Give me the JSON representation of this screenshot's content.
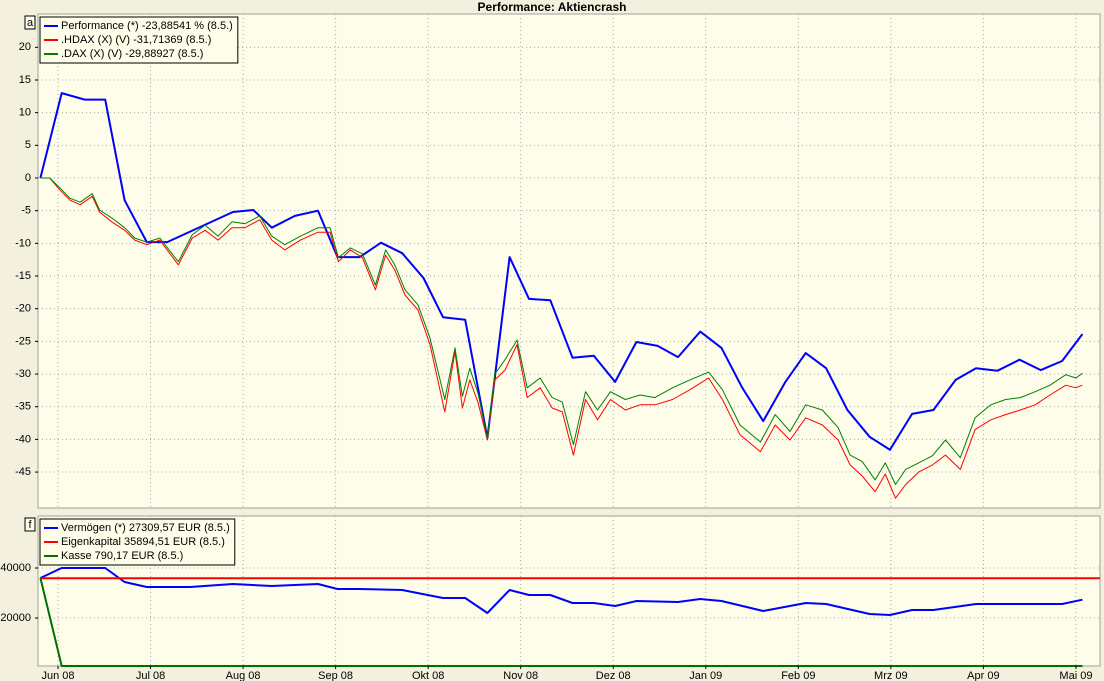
{
  "chart_data": [
    {
      "type": "line",
      "title": "Performance: Aktiencrash",
      "panel_label": "a",
      "xlim": [
        -0.216,
        11.26
      ],
      "ylim": [
        -50.5,
        25.1
      ],
      "yticks": [
        20,
        15,
        10,
        5,
        0,
        -5,
        -10,
        -15,
        -20,
        -25,
        -30,
        -35,
        -40,
        -45
      ],
      "grid": true,
      "legend": "top-left",
      "series": [
        {
          "name": "Performance (*) -23,88541 % (8.5.)",
          "color": "#0000ff",
          "x": [
            -0.19,
            0.04,
            0.29,
            0.51,
            0.72,
            0.96,
            1.18,
            1.89,
            2.11,
            2.31,
            2.56,
            2.81,
            3.02,
            3.26,
            3.49,
            3.72,
            3.95,
            4.16,
            4.4,
            4.64,
            4.88,
            5.09,
            5.32,
            5.56,
            5.79,
            6.02,
            6.25,
            6.48,
            6.7,
            6.94,
            7.17,
            7.39,
            7.62,
            7.86,
            8.08,
            8.3,
            8.53,
            8.77,
            8.99,
            9.23,
            9.46,
            9.7,
            9.92,
            10.15,
            10.39,
            10.62,
            10.85,
            11.07
          ],
          "values": [
            0,
            13,
            12,
            12,
            -3.4,
            -9.8,
            -9.8,
            -5.2,
            -4.9,
            -7.6,
            -5.8,
            -5,
            -12.1,
            -12.1,
            -9.9,
            -11.5,
            -15.3,
            -21.3,
            -21.7,
            -39.8,
            -12.1,
            -18.5,
            -18.7,
            -27.5,
            -27.2,
            -31.2,
            -25.1,
            -25.7,
            -27.4,
            -23.5,
            -26,
            -32,
            -37.2,
            -31.2,
            -26.8,
            -29.1,
            -35.5,
            -39.6,
            -41.6,
            -36.1,
            -35.5,
            -30.9,
            -29.1,
            -29.5,
            -27.8,
            -29.4,
            -28,
            -23.89
          ]
        },
        {
          "name": ".HDAX (X) (V) -31,71369 (8.5.)",
          "color": "#ff0000",
          "x": [
            -0.19,
            -0.09,
            0.02,
            0.13,
            0.24,
            0.37,
            0.45,
            0.58,
            0.72,
            0.83,
            0.96,
            1.1,
            1.3,
            1.45,
            1.59,
            1.73,
            1.88,
            2.02,
            2.18,
            2.31,
            2.45,
            2.62,
            2.81,
            2.94,
            3.03,
            3.16,
            3.29,
            3.43,
            3.54,
            3.64,
            3.75,
            3.89,
            4.02,
            4.18,
            4.29,
            4.37,
            4.45,
            4.54,
            4.64,
            4.72,
            4.83,
            4.96,
            5.07,
            5.21,
            5.34,
            5.45,
            5.57,
            5.7,
            5.83,
            5.97,
            6.13,
            6.29,
            6.45,
            6.64,
            6.83,
            7.03,
            7.18,
            7.37,
            7.59,
            7.75,
            7.91,
            8.08,
            8.26,
            8.43,
            8.56,
            8.69,
            8.83,
            8.94,
            9.05,
            9.16,
            9.3,
            9.45,
            9.59,
            9.75,
            9.91,
            10.08,
            10.24,
            10.4,
            10.56,
            10.72,
            10.89,
            11.0,
            11.07
          ],
          "values": [
            0,
            0,
            -1.8,
            -3.4,
            -4.1,
            -2.8,
            -5.2,
            -6.7,
            -8,
            -9.5,
            -10.2,
            -9.5,
            -13.3,
            -9.2,
            -8,
            -9.5,
            -7.6,
            -7.6,
            -6.4,
            -9.5,
            -11,
            -9.5,
            -8.3,
            -8.3,
            -12.8,
            -11,
            -12.2,
            -17.1,
            -11.8,
            -14.1,
            -17.9,
            -20.2,
            -25.5,
            -35.8,
            -26.6,
            -35.2,
            -30.9,
            -34.4,
            -40.1,
            -30.9,
            -29.4,
            -25.5,
            -33.6,
            -32.1,
            -35.2,
            -35.8,
            -42.4,
            -33.9,
            -37,
            -33.9,
            -35.5,
            -34.7,
            -34.7,
            -33.9,
            -32.4,
            -30.6,
            -33.9,
            -39.3,
            -41.9,
            -37.8,
            -40.1,
            -36.7,
            -37.8,
            -40.1,
            -43.9,
            -45.6,
            -48,
            -45.3,
            -49,
            -46.9,
            -45,
            -43.9,
            -42.4,
            -44.6,
            -38.5,
            -37,
            -36.2,
            -35.5,
            -34.7,
            -33.2,
            -31.7,
            -32.1,
            -31.71
          ]
        },
        {
          "name": ".DAX (X) (V) -29,88927 (8.5.)",
          "color": "#008000",
          "x": [
            -0.19,
            -0.09,
            0.02,
            0.13,
            0.24,
            0.37,
            0.45,
            0.58,
            0.72,
            0.83,
            0.96,
            1.1,
            1.3,
            1.45,
            1.59,
            1.73,
            1.88,
            2.02,
            2.18,
            2.31,
            2.45,
            2.62,
            2.81,
            2.94,
            3.03,
            3.16,
            3.29,
            3.43,
            3.54,
            3.64,
            3.75,
            3.89,
            4.02,
            4.18,
            4.29,
            4.37,
            4.45,
            4.54,
            4.64,
            4.72,
            4.83,
            4.96,
            5.07,
            5.21,
            5.34,
            5.45,
            5.57,
            5.7,
            5.83,
            5.97,
            6.13,
            6.29,
            6.45,
            6.64,
            6.83,
            7.03,
            7.18,
            7.37,
            7.59,
            7.75,
            7.91,
            8.08,
            8.26,
            8.43,
            8.56,
            8.69,
            8.83,
            8.94,
            9.05,
            9.16,
            9.3,
            9.45,
            9.59,
            9.75,
            9.91,
            10.08,
            10.24,
            10.4,
            10.56,
            10.72,
            10.89,
            11.0,
            11.07
          ],
          "values": [
            0,
            0,
            -1.5,
            -3.1,
            -3.7,
            -2.4,
            -4.9,
            -6.1,
            -7.6,
            -9.2,
            -9.8,
            -9.2,
            -12.8,
            -8.7,
            -7.2,
            -8.9,
            -6.7,
            -7,
            -5.8,
            -8.9,
            -10.2,
            -8.9,
            -7.6,
            -7.6,
            -12.2,
            -10.7,
            -11.6,
            -16.4,
            -11,
            -13.3,
            -17.1,
            -19.4,
            -24.5,
            -33.9,
            -26,
            -33.4,
            -29.1,
            -33,
            -39.8,
            -30,
            -27.8,
            -24.8,
            -32.1,
            -30.6,
            -33.6,
            -34.3,
            -40.8,
            -32.7,
            -35.5,
            -32.7,
            -33.9,
            -33.2,
            -33.6,
            -32.1,
            -30.9,
            -29.7,
            -32.4,
            -37.8,
            -40.4,
            -36.2,
            -38.8,
            -34.7,
            -35.5,
            -38.2,
            -42.4,
            -43.4,
            -46.2,
            -43.6,
            -46.9,
            -44.6,
            -43.6,
            -42.5,
            -40.1,
            -42.8,
            -36.7,
            -34.7,
            -33.9,
            -33.6,
            -32.7,
            -31.7,
            -30.1,
            -30.6,
            -29.89
          ]
        }
      ]
    },
    {
      "type": "line",
      "panel_label": "f",
      "xlim": [
        -0.216,
        11.26
      ],
      "ylim": [
        800,
        60800
      ],
      "xticks": [
        {
          "value": 0,
          "label": "Jun 08"
        },
        {
          "value": 1,
          "label": "Jul 08"
        },
        {
          "value": 2,
          "label": "Aug 08"
        },
        {
          "value": 3,
          "label": "Sep 08"
        },
        {
          "value": 4,
          "label": "Okt 08"
        },
        {
          "value": 5,
          "label": "Nov 08"
        },
        {
          "value": 6,
          "label": "Dez 08"
        },
        {
          "value": 7,
          "label": "Jan 09"
        },
        {
          "value": 8,
          "label": "Feb 09"
        },
        {
          "value": 9,
          "label": "Mrz 09"
        },
        {
          "value": 10,
          "label": "Apr 09"
        },
        {
          "value": 11,
          "label": "Mai 09"
        }
      ],
      "yticks": [
        40000,
        20000
      ],
      "grid": true,
      "legend": "top-left",
      "series": [
        {
          "name": "Vermögen (*) 27309,57 EUR (8.5.)",
          "color": "#0000ff",
          "x": [
            -0.19,
            0.04,
            0.51,
            0.72,
            0.96,
            1.43,
            1.89,
            2.31,
            2.81,
            3.02,
            3.26,
            3.72,
            4.16,
            4.4,
            4.64,
            4.88,
            5.09,
            5.32,
            5.56,
            5.79,
            6.02,
            6.25,
            6.7,
            6.94,
            7.17,
            7.62,
            8.08,
            8.3,
            8.77,
            8.99,
            9.23,
            9.46,
            9.92,
            10.85,
            11.07
          ],
          "values": [
            36000,
            40000,
            40000,
            34400,
            32400,
            32400,
            33600,
            32800,
            33600,
            31600,
            31600,
            31200,
            28000,
            28000,
            22000,
            31200,
            29200,
            29200,
            26000,
            26000,
            24800,
            26800,
            26400,
            27600,
            26800,
            22800,
            26000,
            25600,
            21600,
            21200,
            23200,
            23200,
            25600,
            25600,
            27309.57
          ]
        },
        {
          "name": "Eigenkapital 35894,51 EUR (8.5.)",
          "color": "#ff0000",
          "x": [
            -0.19,
            11.26
          ],
          "values": [
            35894.51,
            35894.51
          ]
        },
        {
          "name": "Kasse 790,17 EUR (8.5.)",
          "color": "#007000",
          "x": [
            -0.19,
            0.04,
            11.07
          ],
          "values": [
            36000,
            800,
            790.17
          ]
        }
      ]
    }
  ]
}
